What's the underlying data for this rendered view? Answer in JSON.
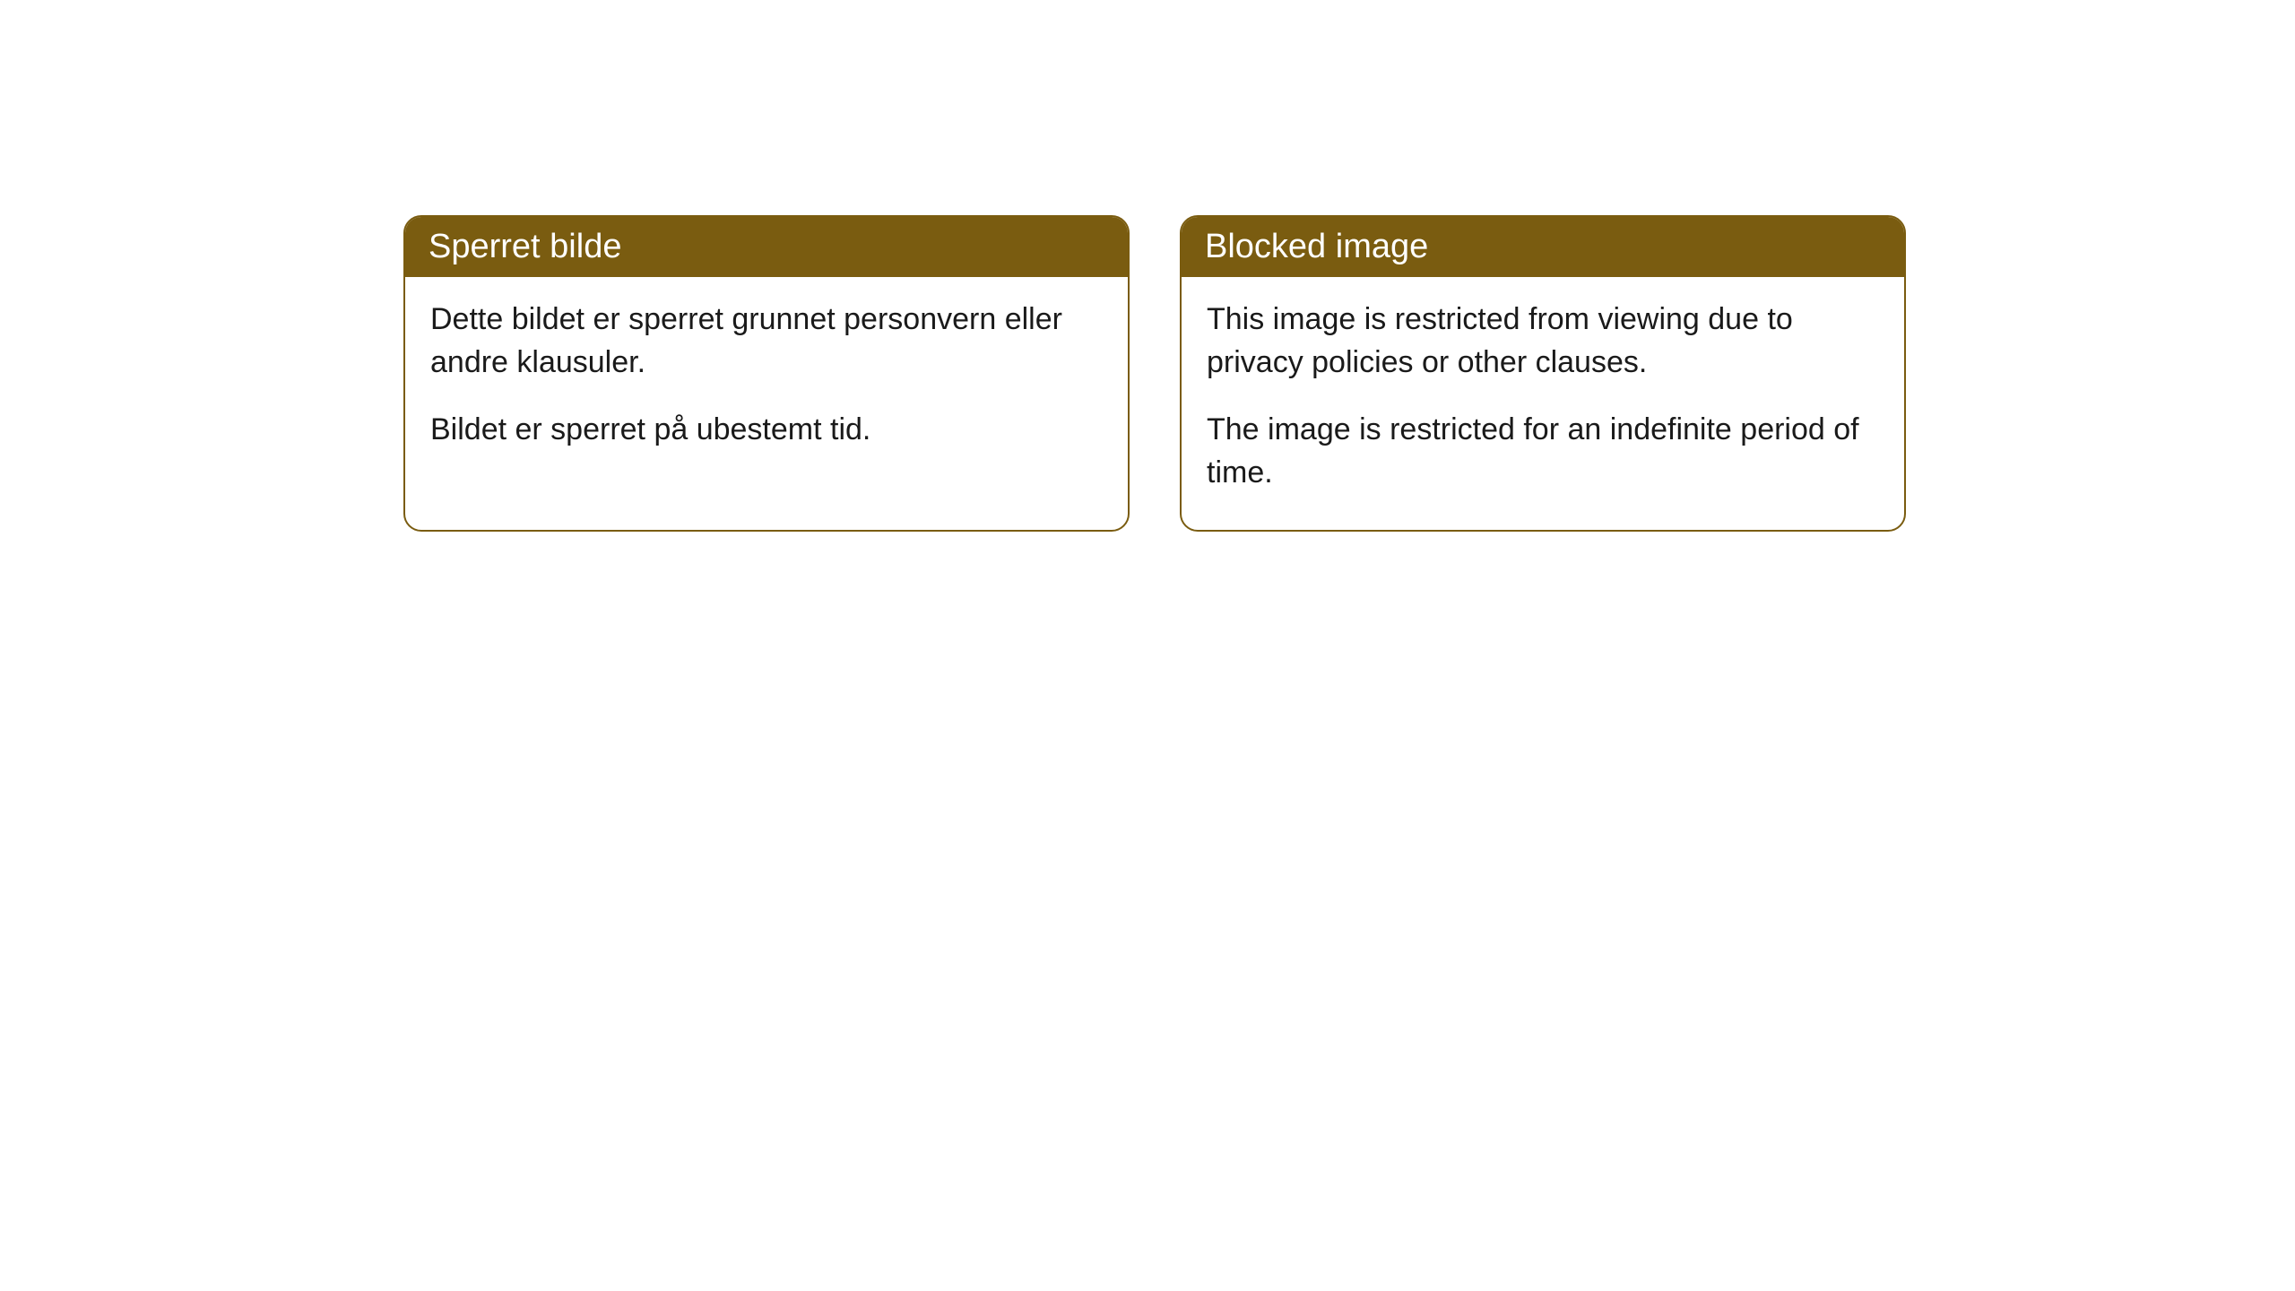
{
  "cards": [
    {
      "title": "Sperret bilde",
      "paragraph1": "Dette bildet er sperret grunnet personvern eller andre klausuler.",
      "paragraph2": "Bildet er sperret på ubestemt tid."
    },
    {
      "title": "Blocked image",
      "paragraph1": "This image is restricted from viewing due to privacy policies or other clauses.",
      "paragraph2": "The image is restricted for an indefinite period of time."
    }
  ],
  "style": {
    "header_bg_color": "#7a5c10",
    "header_text_color": "#ffffff",
    "border_color": "#7a5c10",
    "body_text_color": "#1a1a1a",
    "card_bg_color": "#ffffff",
    "page_bg_color": "#ffffff",
    "border_radius": 20,
    "header_fontsize": 38,
    "body_fontsize": 34
  }
}
